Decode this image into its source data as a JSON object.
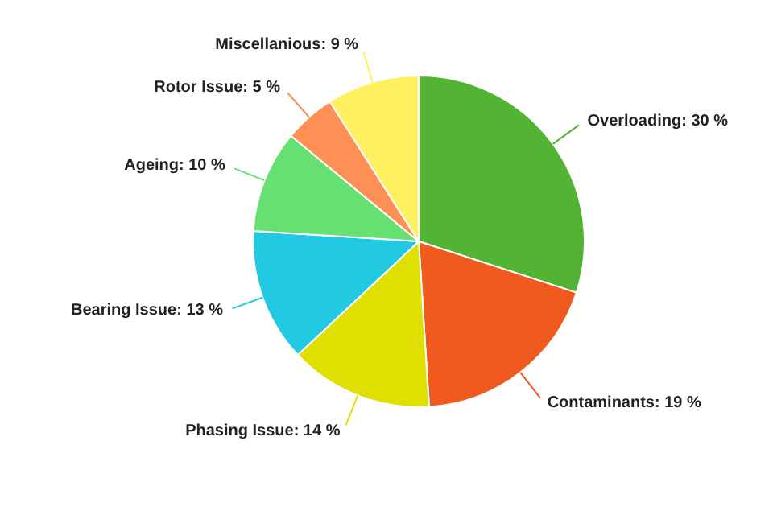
{
  "chart_data": {
    "type": "pie",
    "categories": [
      "Overloading",
      "Contaminants",
      "Phasing Issue",
      "Bearing Issue",
      "Ageing",
      "Rotor Issue",
      "Miscellanious"
    ],
    "values": [
      30,
      19,
      14,
      13,
      10,
      5,
      9
    ],
    "value_labels": [
      "30 %",
      "19 %",
      "14 %",
      "13 %",
      "10 %",
      "5 %",
      "9 %"
    ],
    "colors": [
      "#52b335",
      "#f05a1e",
      "#e0e000",
      "#22c9e3",
      "#66e070",
      "#ff9055",
      "#fff060"
    ],
    "legend": false
  }
}
